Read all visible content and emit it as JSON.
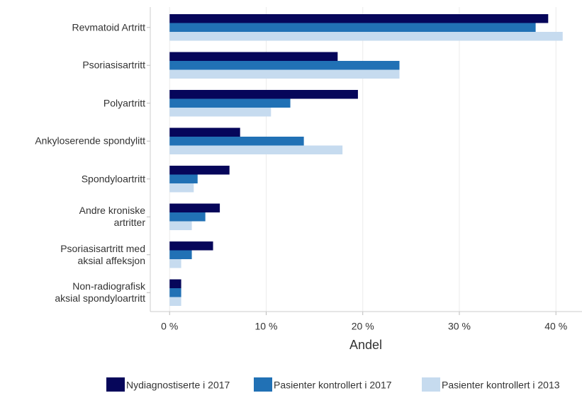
{
  "chart_data": {
    "type": "hbar",
    "x_label": "Andel",
    "categories": [
      "Revmatoid Artritt",
      "Psoriasisartritt",
      "Polyartritt",
      "Ankyloserende spondylitt",
      "Spondyloartritt",
      "Andre kroniske\nartritter",
      "Psoriasisartritt med\naksial affeksjon",
      "Non-radiografisk\naksial spondyloartritt"
    ],
    "series": [
      {
        "name": "Nydiagnostiserte i 2017",
        "color": "#06065a",
        "values": [
          39.2,
          17.4,
          19.5,
          7.3,
          6.2,
          5.2,
          4.5,
          1.2
        ]
      },
      {
        "name": "Pasienter kontrollert i 2017",
        "color": "#2171b5",
        "values": [
          37.9,
          23.8,
          12.5,
          13.9,
          2.9,
          3.7,
          2.3,
          1.2
        ]
      },
      {
        "name": "Pasienter kontrollert i 2013",
        "color": "#c6dbef",
        "values": [
          40.7,
          23.8,
          10.5,
          17.9,
          2.5,
          2.3,
          1.2,
          1.2
        ]
      }
    ],
    "xlim": [
      -2,
      42.7
    ],
    "xticks": [
      {
        "value": 0,
        "label": "0 %"
      },
      {
        "value": 10,
        "label": "10 %"
      },
      {
        "value": 20,
        "label": "20 %"
      },
      {
        "value": 30,
        "label": "30 %"
      },
      {
        "value": 40,
        "label": "40 %"
      }
    ],
    "grid": true,
    "legend_position": "bottom"
  }
}
